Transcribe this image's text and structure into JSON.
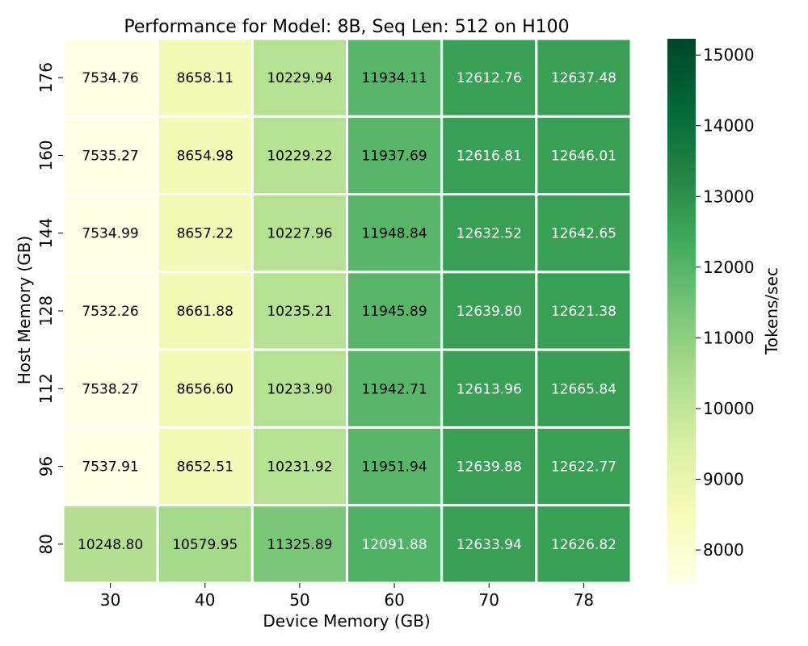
{
  "chart_data": {
    "type": "heatmap",
    "title": "Performance for Model: 8B, Seq Len: 512 on H100",
    "xlabel": "Device Memory (GB)",
    "ylabel": "Host Memory (GB)",
    "colorbar_label": "Tokens/sec",
    "x_categories": [
      "30",
      "40",
      "50",
      "60",
      "70",
      "78"
    ],
    "y_categories": [
      "176",
      "160",
      "144",
      "128",
      "112",
      "96",
      "80"
    ],
    "values": [
      [
        7534.76,
        8658.11,
        10229.94,
        11934.11,
        12612.76,
        12637.48
      ],
      [
        7535.27,
        8654.98,
        10229.22,
        11937.69,
        12616.81,
        12646.01
      ],
      [
        7534.99,
        8657.22,
        10227.96,
        11948.84,
        12632.52,
        12642.65
      ],
      [
        7532.26,
        8661.88,
        10235.21,
        11945.89,
        12639.8,
        12621.38
      ],
      [
        7538.27,
        8656.6,
        10233.9,
        11942.71,
        12613.96,
        12665.84
      ],
      [
        7537.91,
        8652.51,
        10231.92,
        11951.94,
        12639.88,
        12622.77
      ],
      [
        10248.8,
        10579.95,
        11325.89,
        12091.88,
        12633.94,
        12626.82
      ]
    ],
    "value_format_decimals": 2,
    "color_scale": {
      "name": "YlGn",
      "vmin": 7532.26,
      "vmax": 15230,
      "colors": [
        "#ffffe5",
        "#f7fcb9",
        "#d9f0a3",
        "#addd8e",
        "#78c679",
        "#41ab5d",
        "#238443",
        "#006837",
        "#004529"
      ]
    },
    "colorbar_ticks": [
      8000,
      9000,
      10000,
      11000,
      12000,
      13000,
      14000,
      15000
    ],
    "grid": false,
    "cell_border_color": "#ffffff",
    "annotation_colors": {
      "dark_cell_text": "#ffffff",
      "light_cell_text": "#000000"
    }
  }
}
